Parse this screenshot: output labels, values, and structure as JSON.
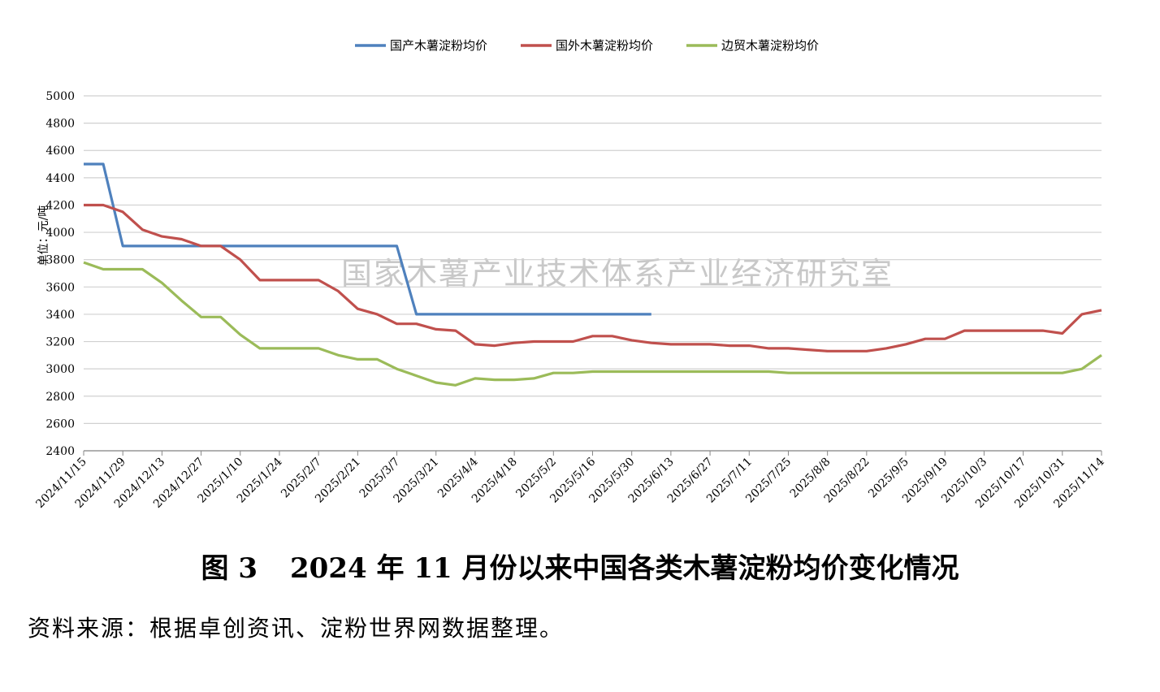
{
  "caption": {
    "figure_no": "图 3",
    "text": "2024 年 11 月份以来中国各类木薯淀粉均价变化情况"
  },
  "source": "资料来源：根据卓创资讯、淀粉世界网数据整理。",
  "watermark": "国家木薯产业技术体系产业经济研究室",
  "chart_data": {
    "type": "line",
    "title": "",
    "xlabel": "",
    "ylabel": "单位：元/吨",
    "ylim": [
      2400,
      5000
    ],
    "yticks": [
      2400,
      2600,
      2800,
      3000,
      3200,
      3400,
      3600,
      3800,
      4000,
      4200,
      4400,
      4600,
      4800,
      5000
    ],
    "grid": "horizontal",
    "legend_position": "top",
    "x_tick_labels": [
      "2024/11/15",
      "2024/11/29",
      "2024/12/13",
      "2024/12/27",
      "2025/1/10",
      "2025/1/24",
      "2025/2/7",
      "2025/2/21",
      "2025/3/7",
      "2025/3/21",
      "2025/4/4",
      "2025/4/18",
      "2025/5/2",
      "2025/5/16",
      "2025/5/30",
      "2025/6/13",
      "2025/6/27",
      "2025/7/11",
      "2025/7/25",
      "2025/8/8",
      "2025/8/22",
      "2025/9/5",
      "2025/9/19",
      "2025/10/3",
      "2025/10/17",
      "2025/10/31",
      "2025/11/14"
    ],
    "series": [
      {
        "name": "国产木薯淀粉均价",
        "color": "#4F81BD",
        "x": [
          "2024/11/15",
          "2024/11/22",
          "2024/11/29",
          "2025/3/7",
          "2025/3/14",
          "2025/6/6"
        ],
        "values": [
          4500,
          4500,
          3900,
          3900,
          3400,
          3400
        ]
      },
      {
        "name": "国外木薯淀粉均价",
        "color": "#C0504D",
        "x": [
          "2024/11/15",
          "2024/11/22",
          "2024/11/29",
          "2024/12/6",
          "2024/12/13",
          "2024/12/20",
          "2024/12/27",
          "2025/1/3",
          "2025/1/10",
          "2025/1/17",
          "2025/1/24",
          "2025/1/31",
          "2025/2/7",
          "2025/2/14",
          "2025/2/21",
          "2025/2/28",
          "2025/3/7",
          "2025/3/14",
          "2025/3/21",
          "2025/3/28",
          "2025/4/4",
          "2025/4/11",
          "2025/4/18",
          "2025/4/25",
          "2025/5/2",
          "2025/5/9",
          "2025/5/16",
          "2025/5/23",
          "2025/5/30",
          "2025/6/6",
          "2025/6/13",
          "2025/6/20",
          "2025/6/27",
          "2025/7/4",
          "2025/7/11",
          "2025/7/18",
          "2025/7/25",
          "2025/8/1",
          "2025/8/8",
          "2025/8/15",
          "2025/8/22",
          "2025/8/29",
          "2025/9/5",
          "2025/9/12",
          "2025/9/19",
          "2025/9/26",
          "2025/10/3",
          "2025/10/10",
          "2025/10/17",
          "2025/10/24",
          "2025/10/31",
          "2025/11/7",
          "2025/11/14"
        ],
        "values": [
          4200,
          4200,
          4150,
          4020,
          3970,
          3950,
          3900,
          3900,
          3800,
          3650,
          3650,
          3650,
          3650,
          3570,
          3440,
          3400,
          3330,
          3330,
          3290,
          3280,
          3180,
          3170,
          3190,
          3200,
          3200,
          3200,
          3240,
          3240,
          3210,
          3190,
          3180,
          3180,
          3180,
          3170,
          3170,
          3150,
          3150,
          3140,
          3130,
          3130,
          3130,
          3150,
          3180,
          3220,
          3220,
          3280,
          3280,
          3280,
          3280,
          3280,
          3260,
          3400,
          3430
        ]
      },
      {
        "name": "边贸木薯淀粉均价",
        "color": "#9BBB59",
        "x": [
          "2024/11/15",
          "2024/11/22",
          "2024/11/29",
          "2024/12/6",
          "2024/12/13",
          "2024/12/20",
          "2024/12/27",
          "2025/1/3",
          "2025/1/10",
          "2025/1/17",
          "2025/1/24",
          "2025/1/31",
          "2025/2/7",
          "2025/2/14",
          "2025/2/21",
          "2025/2/28",
          "2025/3/7",
          "2025/3/14",
          "2025/3/21",
          "2025/3/28",
          "2025/4/4",
          "2025/4/11",
          "2025/4/18",
          "2025/4/25",
          "2025/5/2",
          "2025/5/9",
          "2025/5/16",
          "2025/5/23",
          "2025/5/30",
          "2025/6/6",
          "2025/6/13",
          "2025/6/20",
          "2025/6/27",
          "2025/7/4",
          "2025/7/11",
          "2025/7/18",
          "2025/7/25",
          "2025/8/1",
          "2025/8/8",
          "2025/8/15",
          "2025/8/22",
          "2025/8/29",
          "2025/9/5",
          "2025/9/12",
          "2025/9/19",
          "2025/9/26",
          "2025/10/3",
          "2025/10/10",
          "2025/10/17",
          "2025/10/24",
          "2025/10/31",
          "2025/11/7",
          "2025/11/14"
        ],
        "values": [
          3780,
          3730,
          3730,
          3730,
          3630,
          3500,
          3380,
          3380,
          3250,
          3150,
          3150,
          3150,
          3150,
          3100,
          3070,
          3070,
          3000,
          2950,
          2900,
          2880,
          2930,
          2920,
          2920,
          2930,
          2970,
          2970,
          2980,
          2980,
          2980,
          2980,
          2980,
          2980,
          2980,
          2980,
          2980,
          2980,
          2970,
          2970,
          2970,
          2970,
          2970,
          2970,
          2970,
          2970,
          2970,
          2970,
          2970,
          2970,
          2970,
          2970,
          2970,
          3000,
          3100
        ]
      }
    ]
  }
}
